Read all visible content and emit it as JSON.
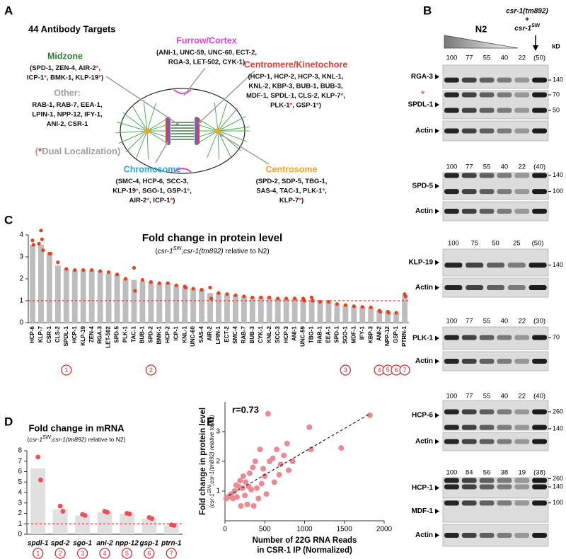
{
  "panel_labels": [
    "A",
    "B",
    "C",
    "D",
    "E"
  ],
  "diagram": {
    "title": "44 Antibody Targets",
    "groups": [
      {
        "name": "Midzone",
        "color": "#2e7d32",
        "lines": [
          "(SPD-1, ZEN-4, AIR-2*,",
          "ICP-1*, BMK-1, KLP-19*)"
        ]
      },
      {
        "name": "Other:",
        "color": "#9e9e9e",
        "lines": [
          "RAB-1, RAB-7, EEA-1,",
          "LPIN-1, NPP-12, IFY-1,",
          "ANI-2, CSR-1"
        ]
      },
      {
        "name": "Furrow/Cortex",
        "color": "#e040e0",
        "lines": [
          "(ANI-1, UNC-59, UNC-60, ECT-2,",
          "RGA-3, LET-502, CYK-1)"
        ]
      },
      {
        "name": "Centromere/Kinetochore",
        "color": "#e53935",
        "lines": [
          "(HCP-1, HCP-2, HCP-3, KNL-1,",
          "KNL-2, KBP-3, BUB-1, BUB-3,",
          "MDF-1, SPDL-1, CLS-2, KLP-7*,",
          "PLK-1*, GSP-1*)"
        ]
      },
      {
        "name": "Chromosome",
        "color": "#29a8d8",
        "lines": [
          "(SMC-4, HCP-6, SCC-3,",
          "KLP-19*, SGO-1, GSP-1*,",
          "AIR-2*, ICP-1*)"
        ]
      },
      {
        "name": "Centrosome",
        "color": "#f5a623",
        "lines": [
          "(SPD-2, SDP-5, TBG-1,",
          "SAS-4, TAC-1, PLK-1*,",
          "KLP-7*)"
        ]
      }
    ],
    "legend": "(*Dual Localization)"
  },
  "blots": {
    "header": {
      "n2": "N2",
      "strain": "csr-1(tm892)",
      "plus": "+",
      "rescue": "csr-1",
      "rescue_sup": "SIN"
    },
    "unit": "kD",
    "groups": [
      {
        "lanes": [
          100,
          77,
          55,
          40,
          22,
          "(50)"
        ],
        "rows": [
          {
            "label": "RGA-3",
            "markers": [
              140
            ]
          },
          {
            "label": "SPDL-1",
            "markers": [
              70,
              50
            ],
            "note": "*"
          },
          {
            "label": "Actin",
            "markers": []
          }
        ]
      },
      {
        "lanes": [
          100,
          77,
          55,
          40,
          22,
          "(40)"
        ],
        "rows": [
          {
            "label": "SPD-5",
            "markers": [
              140,
              100
            ]
          },
          {
            "label": "Actin",
            "markers": []
          }
        ]
      },
      {
        "lanes": [
          100,
          75,
          50,
          25,
          "(50)"
        ],
        "rows": [
          {
            "label": "KLP-19",
            "markers": [
              140
            ]
          },
          {
            "label": "Actin",
            "markers": []
          }
        ]
      },
      {
        "lanes": [
          100,
          77,
          55,
          40,
          22,
          "(30)"
        ],
        "rows": [
          {
            "label": "PLK-1",
            "markers": [
              70
            ]
          },
          {
            "label": "Actin",
            "markers": []
          }
        ]
      },
      {
        "lanes": [
          100,
          77,
          55,
          40,
          22,
          "(40)"
        ],
        "rows": [
          {
            "label": "HCP-6",
            "markers": [
              260,
              140
            ]
          },
          {
            "label": "Actin",
            "markers": []
          }
        ]
      },
      {
        "lanes": [
          100,
          84,
          56,
          38,
          19,
          "(38)"
        ],
        "rows": [
          {
            "label": "HCP-1",
            "markers": [
              260,
              140
            ]
          },
          {
            "label": "MDF-1",
            "markers": [
              100
            ]
          },
          {
            "label": "Actin",
            "markers": []
          }
        ]
      }
    ]
  },
  "chart_data": [
    {
      "type": "bar",
      "title": "Fold change in protein level",
      "subtitle": {
        "parts": [
          "(",
          "csr-1",
          "SIN",
          ";",
          "csr-1(tm892)",
          " relative to N2)"
        ],
        "styles": [
          "normal",
          "italic",
          "sup",
          "normal",
          "italic",
          "normal"
        ]
      },
      "categories": [
        "HCP-6",
        "KLP-7",
        "CSR-1",
        "CLS-2",
        "SPDL-1",
        "HCP-1",
        "KLP-19",
        "ZEN-4",
        "RGA-3",
        "LET-502",
        "SPD-5",
        "PLK-1",
        "TAC-1",
        "BUB-1",
        "SPD-2",
        "BMK-1",
        "HCP-2",
        "ICP-1",
        "KNL-1",
        "UNC-60",
        "SAS-4",
        "AIR-2",
        "LPIN-1",
        "ECT-2",
        "SMC-4",
        "RAB-7",
        "BUB-3",
        "CYK-1",
        "KNL-2",
        "SCC-3",
        "HCP-3",
        "ANI-1",
        "UNC-59",
        "TBG-1",
        "RAB-1",
        "EEA-1",
        "SPD-1",
        "SGO-1",
        "MDF-1",
        "IFY-1",
        "KBP-3",
        "ANI-2",
        "NPP-12",
        "GSP-1",
        "PTRN-1"
      ],
      "values": [
        3.55,
        3.55,
        3.15,
        2.6,
        2.45,
        2.4,
        2.4,
        2.4,
        2.35,
        2.25,
        2.2,
        2.0,
        1.95,
        1.9,
        1.85,
        1.8,
        1.8,
        1.7,
        1.6,
        1.55,
        1.5,
        1.35,
        1.35,
        1.3,
        1.25,
        1.2,
        1.15,
        1.15,
        1.15,
        1.1,
        1.1,
        1.1,
        1.05,
        1.0,
        0.95,
        0.95,
        0.85,
        0.8,
        0.75,
        0.72,
        0.7,
        0.55,
        0.5,
        0.45,
        1.25
      ],
      "points": [
        [
          3.75,
          3.55
        ],
        [
          4.2,
          3.8,
          3.6,
          3.3
        ],
        [
          3.15,
          3.15
        ],
        [
          2.75
        ],
        [
          2.45
        ],
        [
          2.4
        ],
        [
          2.4
        ],
        [
          2.4
        ],
        [
          2.35
        ],
        [
          2.3
        ],
        [
          2.2
        ],
        [
          2.0
        ],
        [
          2.5,
          1.45
        ],
        [
          1.95
        ],
        [
          1.85
        ],
        [
          1.8
        ],
        [
          1.8
        ],
        [
          1.7
        ],
        [
          1.65,
          1.6
        ],
        [
          1.55
        ],
        [
          1.5
        ],
        [
          1.6,
          1.1
        ],
        [
          1.35
        ],
        [
          1.3
        ],
        [
          1.25
        ],
        [
          1.2
        ],
        [
          1.15
        ],
        [
          1.15
        ],
        [
          1.15
        ],
        [
          1.1
        ],
        [
          1.1
        ],
        [
          1.1
        ],
        [
          1.1,
          1.0
        ],
        [
          1.15,
          1.0
        ],
        [
          0.95
        ],
        [
          0.95
        ],
        [
          0.85
        ],
        [
          0.8
        ],
        [
          0.75
        ],
        [
          0.72
        ],
        [
          0.7
        ],
        [
          0.55,
          0.5
        ],
        [
          0.5,
          0.45
        ],
        [
          0.45
        ],
        [
          1.3,
          1.2
        ]
      ],
      "circled": [
        null,
        null,
        null,
        null,
        1,
        null,
        null,
        null,
        null,
        null,
        null,
        null,
        null,
        null,
        2,
        null,
        null,
        null,
        null,
        null,
        null,
        null,
        null,
        null,
        null,
        null,
        null,
        null,
        null,
        null,
        null,
        null,
        null,
        null,
        null,
        null,
        null,
        3,
        null,
        null,
        null,
        4,
        5,
        6,
        7
      ],
      "color": "#bdbdbd",
      "point_color": "#e8401c",
      "reference_line": 1,
      "ylim": [
        0,
        4
      ],
      "yticks": [
        0,
        1,
        2,
        3,
        4
      ]
    },
    {
      "type": "bar",
      "title": "Fold change in mRNA",
      "subtitle": {
        "parts": [
          "(",
          "csr-1",
          "SIN",
          ";",
          "csr-1(tm892)",
          " relative to N2)"
        ],
        "styles": [
          "normal",
          "italic",
          "sup",
          "normal",
          "italic",
          "normal"
        ]
      },
      "categories": [
        "spdl-1",
        "spd-2",
        "sgo-1",
        "ani-2",
        "npp-12",
        "gsp-1",
        "ptrn-1"
      ],
      "values": [
        6.3,
        2.4,
        1.8,
        2.1,
        1.95,
        1.5,
        0.85
      ],
      "points": [
        [
          7.4,
          5.2
        ],
        [
          2.7,
          2.2
        ],
        [
          1.9,
          1.8
        ],
        [
          2.2,
          2.1
        ],
        [
          2.0,
          1.95
        ],
        [
          1.6,
          1.5
        ],
        [
          0.9,
          0.85
        ]
      ],
      "circled": [
        1,
        2,
        3,
        4,
        5,
        6,
        7
      ],
      "color": "#e0e0e0",
      "point_color": "#e8505a",
      "reference_line": 1,
      "ylim": [
        0,
        8
      ],
      "yticks": [
        0,
        1,
        2,
        3,
        4,
        5,
        6,
        7,
        8
      ]
    },
    {
      "type": "scatter",
      "annotation": "r=0.73",
      "x_label": [
        "Number of 22G RNA Reads",
        "in CSR-1 IP (Normalized)"
      ],
      "y_label": "Fold change in protein level",
      "y_sublabel": {
        "parts": [
          "(",
          "csr-1",
          "SIN",
          ";",
          "csr-1(tm892)",
          " relative to N2)"
        ],
        "styles": [
          "normal",
          "italic",
          "sup",
          "normal",
          "italic",
          "normal"
        ]
      },
      "x": [
        15,
        40,
        60,
        80,
        100,
        120,
        140,
        150,
        170,
        190,
        200,
        220,
        230,
        250,
        260,
        280,
        300,
        310,
        330,
        350,
        360,
        380,
        400,
        420,
        440,
        460,
        480,
        500,
        520,
        540,
        560,
        600,
        620,
        650,
        680,
        700,
        740,
        780,
        800,
        850,
        1060,
        1080,
        1460,
        1820
      ],
      "y": [
        0.75,
        0.8,
        0.85,
        0.9,
        0.75,
        1.0,
        1.2,
        0.8,
        1.15,
        1.35,
        0.5,
        1.1,
        1.5,
        0.85,
        1.3,
        0.55,
        1.15,
        1.6,
        1.05,
        1.8,
        0.5,
        2.0,
        1.1,
        0.75,
        2.4,
        1.25,
        1.75,
        1.5,
        0.9,
        3.6,
        2.0,
        2.1,
        1.3,
        2.4,
        1.55,
        1.9,
        2.2,
        2.6,
        1.7,
        2.0,
        3.15,
        2.4,
        2.45,
        3.55
      ],
      "trendline": {
        "x": [
          50,
          1820
        ],
        "y": [
          0.85,
          3.6
        ]
      },
      "color": "#ec8a94",
      "xlim": [
        0,
        2000
      ],
      "xticks": [
        0,
        500,
        1000,
        1500,
        2000
      ],
      "ylim": [
        0,
        4
      ],
      "yticks": [
        1,
        2,
        3
      ]
    }
  ]
}
